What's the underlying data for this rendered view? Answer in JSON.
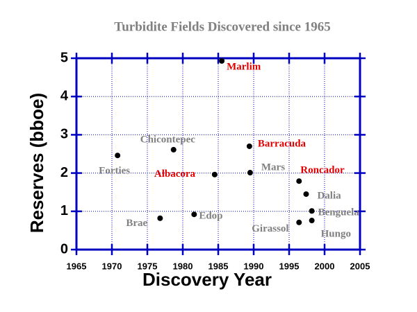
{
  "chart_data": {
    "type": "scatter",
    "title": "Turbidite Fields Discovered since 1965",
    "x_label": "Discovery Year",
    "y_label": "Reserves (bboe)",
    "xlim": [
      1965,
      2005
    ],
    "xticks": [
      1965,
      1970,
      1975,
      1980,
      1985,
      1990,
      1995,
      2000,
      2005
    ],
    "ylim": [
      0,
      5
    ],
    "yticks": [
      0,
      1,
      2,
      3,
      4,
      5
    ],
    "grid": true,
    "axis_color": "#0000c0",
    "series": [
      {
        "color": "#000000",
        "x": [
          1970.8,
          1976.8,
          1978.7,
          1981.6,
          1984.5,
          1985.5,
          1989.4,
          1989.5,
          1996.4,
          1997.4,
          1998.2,
          1996.4,
          1998.2
        ],
        "values": [
          2.46,
          0.82,
          2.61,
          0.92,
          1.96,
          4.93,
          2.7,
          2.01,
          1.79,
          1.45,
          1.01,
          0.71,
          0.76
        ],
        "labels": [
          "Forties",
          "Brae",
          "Chicontepec",
          "Edop",
          "Albacora",
          "Marlim",
          "Barracuda",
          "Mars",
          "Roncador",
          "Dalia",
          "Benguela",
          "Girassol",
          "Hungo"
        ],
        "label_colors": [
          "#808080",
          "#808080",
          "#808080",
          "#808080",
          "#e00000",
          "#e00000",
          "#e00000",
          "#808080",
          "#e00000",
          "#808080",
          "#808080",
          "#808080",
          "#808080"
        ]
      }
    ]
  }
}
